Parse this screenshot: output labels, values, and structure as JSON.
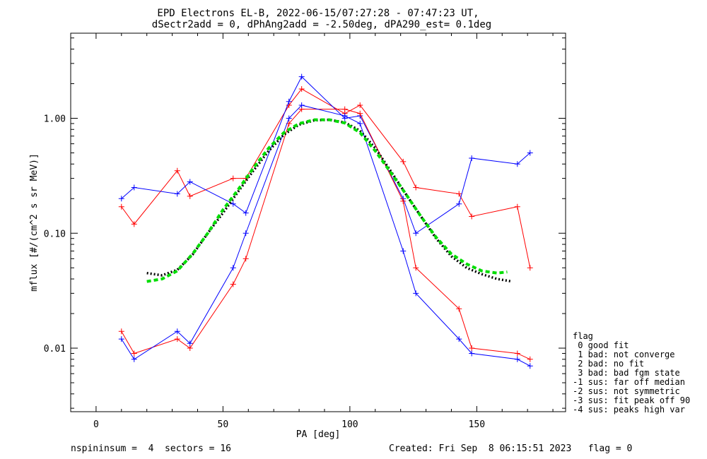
{
  "chart_data": {
    "type": "line",
    "title_line1": "EPD Electrons EL-B, 2022-06-15/07:27:28 - 07:47:23 UT,",
    "title_line2": "dSectr2add = 0, dPhAng2add = -2.50deg, dPA290_est=   0.1deg",
    "xlabel": "PA [deg]",
    "ylabel": "mflux [#/(cm^2 s sr MeV)]",
    "xlim": [
      -10,
      185
    ],
    "ylim": [
      0.0028,
      5.5
    ],
    "yscale": "log",
    "x_ticks": [
      0,
      50,
      100,
      150
    ],
    "y_ticks": [
      {
        "value": 1.0,
        "label": "1.00"
      },
      {
        "value": 0.1,
        "label": "0.10"
      },
      {
        "value": 0.01,
        "label": "0.01"
      }
    ],
    "pa_bins": [
      10,
      15,
      32,
      37,
      54,
      59,
      76,
      81,
      98,
      104,
      121,
      126,
      143,
      148,
      166,
      171
    ],
    "series": [
      {
        "color": "#ff0000",
        "values": [
          0.17,
          0.12,
          0.35,
          0.21,
          0.3,
          0.3,
          1.3,
          1.8,
          1.1,
          1.3,
          0.42,
          0.25,
          0.22,
          0.14,
          0.17,
          0.05
        ]
      },
      {
        "color": "#0000ff",
        "values": [
          0.2,
          0.25,
          0.22,
          0.28,
          0.18,
          0.15,
          1.4,
          2.3,
          1.0,
          1.05,
          0.2,
          0.1,
          0.18,
          0.45,
          0.4,
          0.5
        ]
      },
      {
        "color": "#ff0000",
        "values": [
          0.014,
          0.009,
          0.012,
          0.01,
          0.036,
          0.06,
          0.9,
          1.2,
          1.2,
          1.1,
          0.19,
          0.05,
          0.022,
          0.01,
          0.009,
          0.008
        ]
      },
      {
        "color": "#0000ff",
        "values": [
          0.012,
          0.008,
          0.014,
          0.011,
          0.05,
          0.1,
          1.0,
          1.3,
          1.05,
          0.9,
          0.07,
          0.03,
          0.012,
          0.009,
          0.008,
          0.007
        ]
      }
    ],
    "fit_curves": [
      {
        "name": "fit-black",
        "color": "#000000",
        "x": [
          20,
          26,
          32,
          38,
          44,
          50,
          56,
          62,
          68,
          74,
          80,
          86,
          92,
          98,
          104,
          110,
          116,
          122,
          128,
          134,
          140,
          146,
          152,
          158,
          164
        ],
        "y": [
          0.045,
          0.043,
          0.048,
          0.065,
          0.1,
          0.15,
          0.23,
          0.35,
          0.52,
          0.72,
          0.88,
          0.96,
          0.97,
          0.92,
          0.78,
          0.55,
          0.35,
          0.22,
          0.14,
          0.09,
          0.063,
          0.05,
          0.044,
          0.04,
          0.038
        ]
      },
      {
        "name": "fit-green",
        "color": "#00dd00",
        "x": [
          20,
          26,
          32,
          38,
          44,
          50,
          56,
          62,
          68,
          74,
          80,
          86,
          92,
          98,
          104,
          110,
          116,
          122,
          128,
          134,
          140,
          146,
          152,
          158,
          162
        ],
        "y": [
          0.038,
          0.04,
          0.047,
          0.066,
          0.1,
          0.16,
          0.24,
          0.37,
          0.55,
          0.75,
          0.9,
          0.97,
          0.97,
          0.91,
          0.75,
          0.52,
          0.34,
          0.22,
          0.14,
          0.092,
          0.066,
          0.054,
          0.047,
          0.045,
          0.046
        ]
      }
    ]
  },
  "legend": {
    "header": "flag",
    "items": [
      " 0 good fit",
      " 1 bad: not converge",
      " 2 bad: no fit",
      " 3 bad: bad fgm state",
      "-1 sus: far off median",
      "-2 sus: not symmetric",
      "-3 sus: fit peak off 90",
      "-4 sus: peaks high var"
    ]
  },
  "footer": {
    "left": "nspininsum =  4  sectors = 16",
    "right": "Created: Fri Sep  8 06:15:51 2023   flag = 0"
  }
}
